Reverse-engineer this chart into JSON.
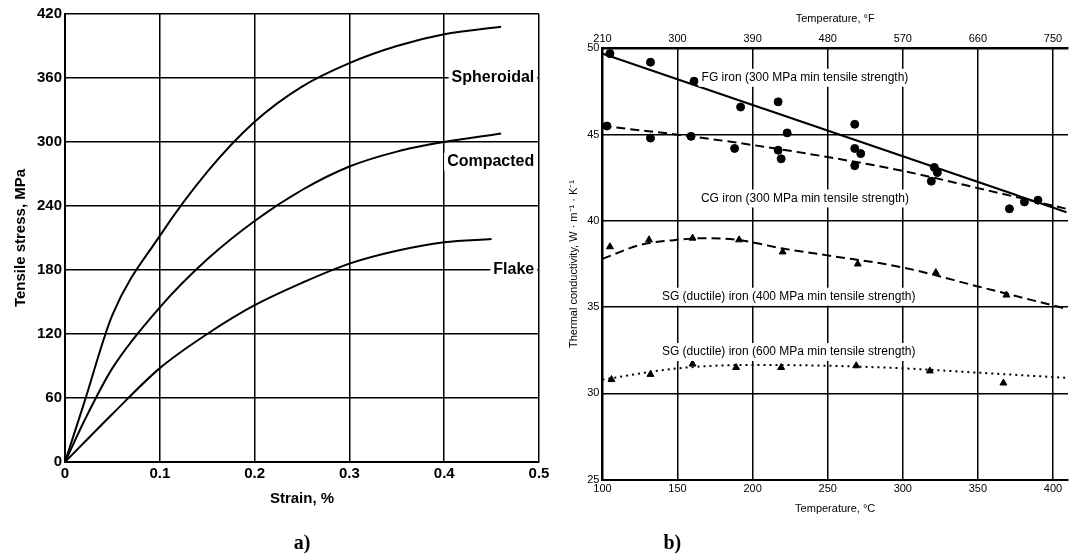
{
  "chart_data": [
    {
      "type": "line",
      "xlabel": "Strain, %",
      "ylabel": "Tensile stress, MPa",
      "xlim": [
        0,
        0.5
      ],
      "xticks": [
        0,
        0.1,
        0.2,
        0.3,
        0.4,
        0.5
      ],
      "ylim": [
        0,
        420
      ],
      "yticks": [
        0,
        60,
        120,
        180,
        240,
        300,
        360,
        420
      ],
      "grid": true,
      "legend": false,
      "marker": "none",
      "line_style": "solid",
      "annotations": [
        "a)"
      ],
      "series": [
        {
          "name": "Spheroidal",
          "color": "#000000",
          "x": [
            0,
            0.02,
            0.05,
            0.1,
            0.15,
            0.2,
            0.25,
            0.3,
            0.35,
            0.4,
            0.46
          ],
          "values": [
            0,
            55,
            138,
            212,
            272,
            319,
            352,
            374,
            390,
            401,
            408
          ]
        },
        {
          "name": "Compacted",
          "color": "#000000",
          "x": [
            0,
            0.02,
            0.05,
            0.1,
            0.15,
            0.2,
            0.25,
            0.3,
            0.35,
            0.4,
            0.46
          ],
          "values": [
            0,
            38,
            88,
            145,
            190,
            226,
            255,
            277,
            291,
            300,
            308
          ]
        },
        {
          "name": "Flake",
          "color": "#000000",
          "x": [
            0,
            0.05,
            0.1,
            0.15,
            0.2,
            0.25,
            0.3,
            0.35,
            0.4,
            0.45
          ],
          "values": [
            0,
            45,
            88,
            120,
            147,
            168,
            186,
            198,
            206,
            209
          ]
        }
      ]
    },
    {
      "type": "scatter",
      "xlabel": "Temperature, °C",
      "x2label": "Temperature, °F",
      "ylabel": "Thermal conductivity, W · m⁻¹ · K⁻¹",
      "xlim": [
        100,
        410
      ],
      "xticks": [
        100,
        150,
        200,
        250,
        300,
        350,
        400
      ],
      "x2lim": [
        210,
        768
      ],
      "x2ticks": [
        210,
        300,
        390,
        480,
        570,
        660,
        750
      ],
      "ylim": [
        25,
        50
      ],
      "yticks": [
        25,
        30,
        35,
        40,
        45,
        50
      ],
      "grid": true,
      "legend": false,
      "annotations": [
        "b)"
      ],
      "series": [
        {
          "type": "line",
          "name": "FG iron (300 MPa min tensile strength)",
          "color": "#000000",
          "marker": "none",
          "line_style": "solid",
          "x": [
            100,
            409
          ],
          "values": [
            49.7,
            40.5
          ]
        },
        {
          "type": "scatter",
          "color": "#000000",
          "marker": "circle",
          "x": [
            105,
            132,
            161,
            192,
            217,
            223,
            268,
            272,
            321,
            371,
            390
          ],
          "values": [
            49.7,
            49.2,
            48.1,
            46.6,
            46.9,
            45.1,
            45.6,
            43.9,
            43.1,
            40.7,
            41.2
          ]
        },
        {
          "type": "line",
          "name": "CG iron (300 MPa min tensile strength)",
          "color": "#000000",
          "marker": "none",
          "line_style": "dashed",
          "x": [
            100,
            150,
            200,
            250,
            300,
            350,
            409
          ],
          "values": [
            45.5,
            45.0,
            44.4,
            43.7,
            42.9,
            41.9,
            40.7
          ]
        },
        {
          "type": "scatter",
          "color": "#000000",
          "marker": "circle",
          "x": [
            103,
            132,
            159,
            188,
            217,
            219,
            268,
            268,
            319,
            323,
            381
          ],
          "values": [
            45.5,
            44.8,
            44.9,
            44.2,
            44.1,
            43.6,
            44.2,
            43.2,
            42.3,
            42.8,
            41.1
          ]
        },
        {
          "type": "line",
          "name": "SG (ductile) iron (400 MPa min tensile strength)",
          "color": "#000000",
          "marker": "none",
          "line_style": "dashed",
          "x": [
            100,
            125,
            150,
            170,
            190,
            220,
            250,
            300,
            350,
            409
          ],
          "values": [
            37.8,
            38.6,
            38.9,
            39.0,
            38.9,
            38.4,
            38.0,
            37.3,
            36.2,
            34.9
          ]
        },
        {
          "type": "scatter",
          "color": "#000000",
          "marker": "triangle",
          "x": [
            105,
            131,
            160,
            191,
            220,
            270,
            322,
            369
          ],
          "values": [
            38.5,
            38.9,
            39.0,
            38.9,
            38.2,
            37.5,
            37.0,
            35.7
          ]
        },
        {
          "type": "line",
          "name": "SG (ductile) iron (600 MPa min tensile strength)",
          "color": "#000000",
          "marker": "none",
          "line_style": "dotted",
          "x": [
            100,
            150,
            200,
            250,
            300,
            350,
            409
          ],
          "values": [
            30.8,
            31.45,
            31.65,
            31.6,
            31.45,
            31.2,
            30.9
          ]
        },
        {
          "type": "scatter",
          "color": "#000000",
          "marker": "triangle",
          "x": [
            106,
            132,
            160,
            189,
            219,
            269,
            318,
            367
          ],
          "values": [
            30.8,
            31.1,
            31.7,
            31.5,
            31.5,
            31.6,
            31.3,
            30.6
          ]
        }
      ]
    }
  ]
}
